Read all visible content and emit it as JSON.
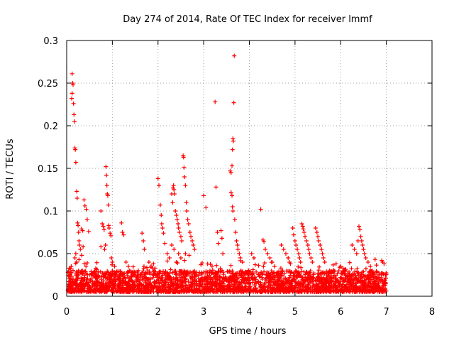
{
  "chart_data": {
    "type": "scatter",
    "title": "Day 274 of 2014, Rate Of TEC Index for receiver lmmf",
    "xlabel": "GPS time / hours",
    "ylabel": "ROTI / TECUs",
    "xlim": [
      0,
      8
    ],
    "ylim": [
      0,
      0.3
    ],
    "x_ticks": [
      "0",
      "1",
      "2",
      "3",
      "4",
      "5",
      "6",
      "7",
      "8"
    ],
    "y_ticks": [
      "0",
      "0.05",
      "0.1",
      "0.15",
      "0.2",
      "0.25",
      "0.3"
    ],
    "x_tick_values": [
      0,
      1,
      2,
      3,
      4,
      5,
      6,
      7,
      8
    ],
    "y_tick_values": [
      0,
      0.05,
      0.1,
      0.15,
      0.2,
      0.25,
      0.3
    ],
    "grid": true,
    "marker": "+",
    "series": [
      {
        "name": "ROTI",
        "color": "#ff0000",
        "background_band": {
          "x_start": 0.02,
          "x_end": 7.0,
          "y_min": 0.005,
          "y_max": 0.03,
          "count": 2600
        },
        "points": [
          [
            0.12,
            0.261
          ],
          [
            0.13,
            0.25
          ],
          [
            0.14,
            0.248
          ],
          [
            0.12,
            0.238
          ],
          [
            0.11,
            0.232
          ],
          [
            0.15,
            0.226
          ],
          [
            0.16,
            0.213
          ],
          [
            0.17,
            0.205
          ],
          [
            0.18,
            0.174
          ],
          [
            0.19,
            0.172
          ],
          [
            0.2,
            0.157
          ],
          [
            0.22,
            0.123
          ],
          [
            0.23,
            0.115
          ],
          [
            0.24,
            0.086
          ],
          [
            0.25,
            0.083
          ],
          [
            0.26,
            0.075
          ],
          [
            0.27,
            0.065
          ],
          [
            0.28,
            0.06
          ],
          [
            0.3,
            0.055
          ],
          [
            0.32,
            0.079
          ],
          [
            0.35,
            0.077
          ],
          [
            0.38,
            0.113
          ],
          [
            0.4,
            0.106
          ],
          [
            0.43,
            0.102
          ],
          [
            0.45,
            0.09
          ],
          [
            0.48,
            0.076
          ],
          [
            0.2,
            0.05
          ],
          [
            0.18,
            0.045
          ],
          [
            0.22,
            0.04
          ],
          [
            0.1,
            0.035
          ],
          [
            0.08,
            0.032
          ],
          [
            0.27,
            0.043
          ],
          [
            0.33,
            0.048
          ],
          [
            0.36,
            0.058
          ],
          [
            0.75,
            0.1
          ],
          [
            0.78,
            0.085
          ],
          [
            0.8,
            0.082
          ],
          [
            0.82,
            0.078
          ],
          [
            0.86,
            0.152
          ],
          [
            0.87,
            0.142
          ],
          [
            0.88,
            0.13
          ],
          [
            0.89,
            0.12
          ],
          [
            0.9,
            0.118
          ],
          [
            0.91,
            0.107
          ],
          [
            0.92,
            0.083
          ],
          [
            0.93,
            0.08
          ],
          [
            0.95,
            0.074
          ],
          [
            0.97,
            0.071
          ],
          [
            0.85,
            0.06
          ],
          [
            0.83,
            0.055
          ],
          [
            0.75,
            0.058
          ],
          [
            0.98,
            0.045
          ],
          [
            1.0,
            0.04
          ],
          [
            1.05,
            0.035
          ],
          [
            1.2,
            0.086
          ],
          [
            1.22,
            0.075
          ],
          [
            1.25,
            0.072
          ],
          [
            1.3,
            0.04
          ],
          [
            1.35,
            0.035
          ],
          [
            1.65,
            0.074
          ],
          [
            1.68,
            0.065
          ],
          [
            1.7,
            0.055
          ],
          [
            1.8,
            0.04
          ],
          [
            1.9,
            0.038
          ],
          [
            2.0,
            0.138
          ],
          [
            2.02,
            0.13
          ],
          [
            2.05,
            0.107
          ],
          [
            2.07,
            0.095
          ],
          [
            2.08,
            0.085
          ],
          [
            2.1,
            0.08
          ],
          [
            2.12,
            0.074
          ],
          [
            2.15,
            0.062
          ],
          [
            2.2,
            0.05
          ],
          [
            2.25,
            0.045
          ],
          [
            2.3,
            0.12
          ],
          [
            2.32,
            0.11
          ],
          [
            2.33,
            0.127
          ],
          [
            2.34,
            0.13
          ],
          [
            2.35,
            0.125
          ],
          [
            2.36,
            0.12
          ],
          [
            2.38,
            0.1
          ],
          [
            2.4,
            0.095
          ],
          [
            2.42,
            0.09
          ],
          [
            2.44,
            0.085
          ],
          [
            2.45,
            0.08
          ],
          [
            2.47,
            0.075
          ],
          [
            2.5,
            0.07
          ],
          [
            2.52,
            0.065
          ],
          [
            2.55,
            0.165
          ],
          [
            2.56,
            0.163
          ],
          [
            2.57,
            0.151
          ],
          [
            2.58,
            0.14
          ],
          [
            2.6,
            0.13
          ],
          [
            2.62,
            0.11
          ],
          [
            2.63,
            0.1
          ],
          [
            2.65,
            0.09
          ],
          [
            2.67,
            0.085
          ],
          [
            2.7,
            0.075
          ],
          [
            2.72,
            0.07
          ],
          [
            2.75,
            0.065
          ],
          [
            2.77,
            0.06
          ],
          [
            2.8,
            0.055
          ],
          [
            2.3,
            0.06
          ],
          [
            2.35,
            0.055
          ],
          [
            2.45,
            0.05
          ],
          [
            2.5,
            0.045
          ],
          [
            2.6,
            0.05
          ],
          [
            2.68,
            0.048
          ],
          [
            2.4,
            0.04
          ],
          [
            2.58,
            0.042
          ],
          [
            3.0,
            0.118
          ],
          [
            3.05,
            0.104
          ],
          [
            3.25,
            0.228
          ],
          [
            3.27,
            0.128
          ],
          [
            3.3,
            0.075
          ],
          [
            3.32,
            0.062
          ],
          [
            3.38,
            0.077
          ],
          [
            3.4,
            0.068
          ],
          [
            3.42,
            0.05
          ],
          [
            3.58,
            0.147
          ],
          [
            3.6,
            0.145
          ],
          [
            3.6,
            0.122
          ],
          [
            3.62,
            0.118
          ],
          [
            3.62,
            0.153
          ],
          [
            3.63,
            0.172
          ],
          [
            3.64,
            0.185
          ],
          [
            3.65,
            0.182
          ],
          [
            3.66,
            0.227
          ],
          [
            3.67,
            0.282
          ],
          [
            3.63,
            0.105
          ],
          [
            3.64,
            0.1
          ],
          [
            3.68,
            0.09
          ],
          [
            3.7,
            0.075
          ],
          [
            3.72,
            0.065
          ],
          [
            3.74,
            0.06
          ],
          [
            3.75,
            0.055
          ],
          [
            3.78,
            0.05
          ],
          [
            3.8,
            0.045
          ],
          [
            3.85,
            0.04
          ],
          [
            4.05,
            0.05
          ],
          [
            4.1,
            0.045
          ],
          [
            4.25,
            0.102
          ],
          [
            4.3,
            0.066
          ],
          [
            4.32,
            0.064
          ],
          [
            4.35,
            0.055
          ],
          [
            4.4,
            0.05
          ],
          [
            4.45,
            0.045
          ],
          [
            4.5,
            0.04
          ],
          [
            4.55,
            0.035
          ],
          [
            4.7,
            0.06
          ],
          [
            4.75,
            0.055
          ],
          [
            4.8,
            0.05
          ],
          [
            4.85,
            0.045
          ],
          [
            4.88,
            0.04
          ],
          [
            4.9,
            0.038
          ],
          [
            4.95,
            0.08
          ],
          [
            4.97,
            0.072
          ],
          [
            5.0,
            0.065
          ],
          [
            5.02,
            0.06
          ],
          [
            5.05,
            0.055
          ],
          [
            5.08,
            0.05
          ],
          [
            5.1,
            0.045
          ],
          [
            5.12,
            0.04
          ],
          [
            5.15,
            0.085
          ],
          [
            5.17,
            0.082
          ],
          [
            5.18,
            0.079
          ],
          [
            5.2,
            0.075
          ],
          [
            5.22,
            0.07
          ],
          [
            5.25,
            0.065
          ],
          [
            5.28,
            0.06
          ],
          [
            5.3,
            0.055
          ],
          [
            5.32,
            0.05
          ],
          [
            5.35,
            0.045
          ],
          [
            5.38,
            0.04
          ],
          [
            5.45,
            0.08
          ],
          [
            5.48,
            0.075
          ],
          [
            5.5,
            0.07
          ],
          [
            5.52,
            0.065
          ],
          [
            5.55,
            0.06
          ],
          [
            5.58,
            0.055
          ],
          [
            5.6,
            0.05
          ],
          [
            5.62,
            0.045
          ],
          [
            5.65,
            0.04
          ],
          [
            5.9,
            0.038
          ],
          [
            6.0,
            0.035
          ],
          [
            6.05,
            0.033
          ],
          [
            6.25,
            0.06
          ],
          [
            6.3,
            0.055
          ],
          [
            6.35,
            0.05
          ],
          [
            6.38,
            0.065
          ],
          [
            6.4,
            0.082
          ],
          [
            6.42,
            0.078
          ],
          [
            6.44,
            0.07
          ],
          [
            6.46,
            0.065
          ],
          [
            6.48,
            0.06
          ],
          [
            6.5,
            0.055
          ],
          [
            6.52,
            0.05
          ],
          [
            6.55,
            0.045
          ],
          [
            6.6,
            0.04
          ],
          [
            6.65,
            0.035
          ],
          [
            6.9,
            0.042
          ],
          [
            6.92,
            0.04
          ],
          [
            6.95,
            0.038
          ]
        ]
      }
    ]
  }
}
